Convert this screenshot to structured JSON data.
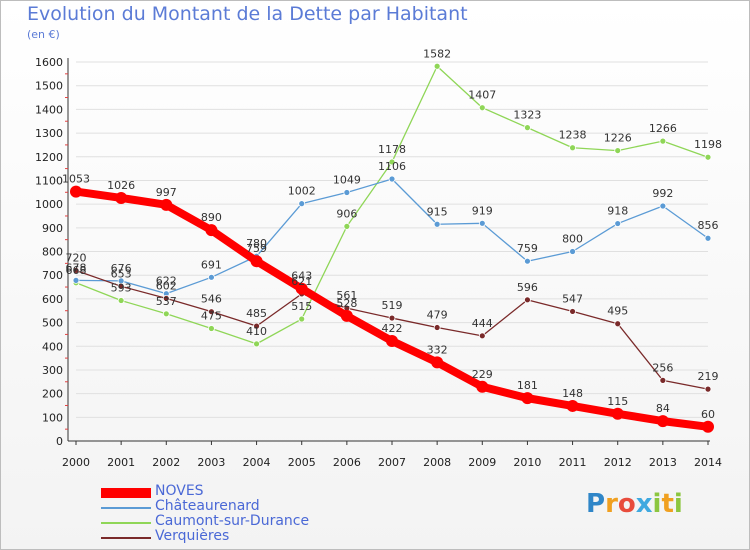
{
  "header": {
    "title": "Evolution du Montant de la Dette par Habitant",
    "subtitle": "(en €)"
  },
  "logo": {
    "letters": [
      "P",
      "r",
      "o",
      "x",
      "i",
      "t",
      "i"
    ]
  },
  "colors": {
    "NOVES": "#ff0000",
    "Châteaurenard": "#5b9bd5",
    "Caumont-sur-Durance": "#8fd657",
    "Verquières": "#7a2a2a",
    "axis_text": "#222222",
    "grid": "#e0e0e0"
  },
  "chart_data": {
    "type": "line",
    "title": "Evolution du Montant de la Dette par Habitant",
    "subtitle": "(en €)",
    "xlabel": "",
    "ylabel": "",
    "categories": [
      "2000",
      "2001",
      "2002",
      "2003",
      "2004",
      "2005",
      "2006",
      "2007",
      "2008",
      "2009",
      "2010",
      "2011",
      "2012",
      "2013",
      "2014"
    ],
    "ylim": [
      0,
      1600
    ],
    "yticks": [
      0,
      100,
      200,
      300,
      400,
      500,
      600,
      700,
      800,
      900,
      1000,
      1100,
      1200,
      1300,
      1400,
      1500,
      1600
    ],
    "grid": true,
    "legend_position": "bottom-left",
    "series": [
      {
        "name": "NOVES",
        "values": [
          1053,
          1026,
          997,
          890,
          759,
          643,
          528,
          422,
          332,
          229,
          181,
          148,
          115,
          84,
          60
        ]
      },
      {
        "name": "Châteaurenard",
        "values": [
          678,
          676,
          622,
          691,
          780,
          1002,
          1049,
          1106,
          915,
          919,
          759,
          800,
          918,
          992,
          856
        ]
      },
      {
        "name": "Caumont-sur-Durance",
        "values": [
          668,
          593,
          537,
          475,
          410,
          515,
          906,
          1178,
          1582,
          1407,
          1323,
          1238,
          1226,
          1266,
          1198
        ]
      },
      {
        "name": "Verquières",
        "values": [
          720,
          653,
          602,
          546,
          485,
          621,
          561,
          519,
          479,
          444,
          596,
          547,
          495,
          256,
          219
        ]
      }
    ]
  }
}
